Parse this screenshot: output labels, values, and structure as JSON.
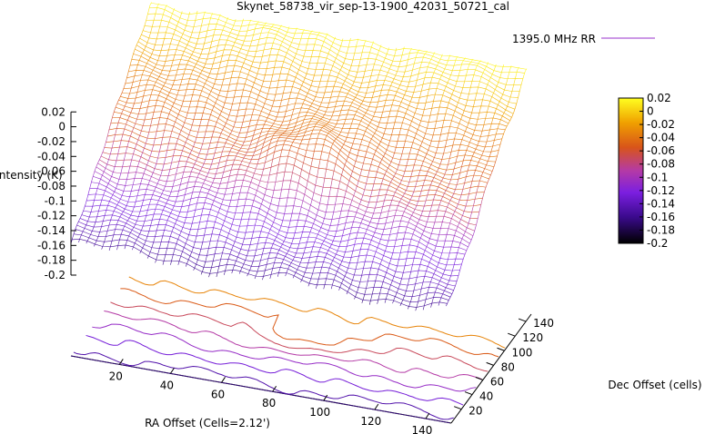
{
  "chart_data": {
    "type": "surface",
    "title": "Skynet_58738_vir_sep-13-1900_42031_50721_cal",
    "xlabel": "RA Offset (Cells=2.12')",
    "ylabel": "Dec Offset (cells)",
    "zlabel": "Intensity (K)",
    "x_ticks": [
      20,
      40,
      60,
      80,
      100,
      120,
      140
    ],
    "y_ticks": [
      20,
      40,
      60,
      80,
      100,
      120,
      140
    ],
    "z_ticks": [
      0.02,
      0,
      -0.02,
      -0.04,
      -0.06,
      -0.08,
      -0.1,
      -0.12,
      -0.14,
      -0.16,
      -0.18,
      -0.2
    ],
    "z_tick_labels": [
      "0.02",
      "0",
      "-0.02",
      "-0.04",
      "-0.06",
      "-0.08",
      "-0.1",
      "-0.12",
      "-0.14",
      "-0.16",
      "-0.18",
      "-0.2"
    ],
    "xlim": [
      1,
      150
    ],
    "ylim": [
      1,
      150
    ],
    "zlim": [
      -0.2,
      0.02
    ],
    "legend": {
      "label": "1395.0 MHz RR",
      "position": "top-right",
      "color": "#9933cc"
    },
    "colorbar": {
      "ticks": [
        0.02,
        0,
        -0.02,
        -0.04,
        -0.06,
        -0.08,
        -0.1,
        -0.12,
        -0.14,
        -0.16,
        -0.18,
        -0.2
      ],
      "tick_labels": [
        "0.02",
        "0",
        "-0.02",
        "-0.04",
        "-0.06",
        "-0.08",
        "-0.1",
        "-0.12",
        "-0.14",
        "-0.16",
        "-0.18",
        "-0.2"
      ],
      "range": [
        -0.2,
        0.02
      ],
      "palette": [
        "#000000",
        "#3a0a8c",
        "#7b1fe0",
        "#b43aa6",
        "#d8541a",
        "#f0a000",
        "#ffff20"
      ]
    },
    "contour_levels": [
      -0.17,
      -0.15,
      -0.13,
      -0.11,
      -0.09,
      -0.07,
      -0.05,
      -0.03
    ],
    "surface_model": {
      "description_of_trend": "intensity rises roughly linearly with Dec offset from about -0.16 to 0.02",
      "baseline_at_low_dec": -0.16,
      "baseline_at_high_dec": 0.02,
      "source": {
        "ra": 78,
        "dec": 70,
        "amplitude": 0.03
      }
    }
  }
}
